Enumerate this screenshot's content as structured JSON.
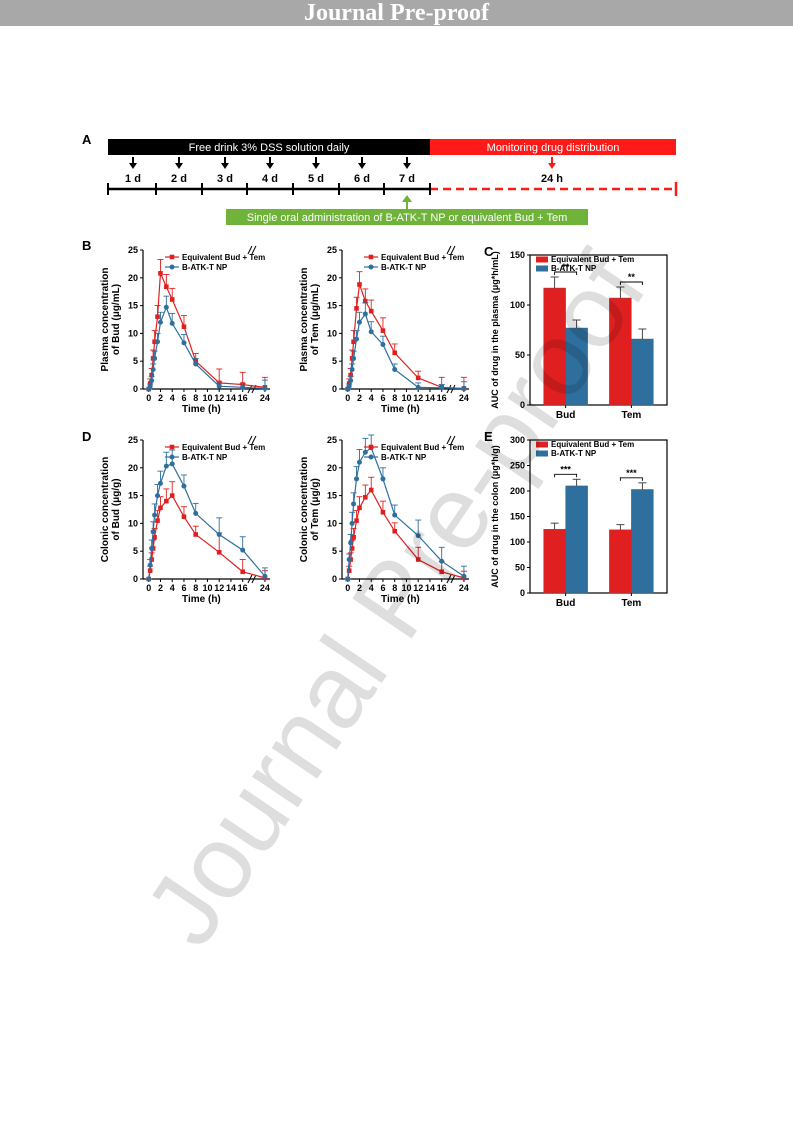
{
  "header": {
    "banner_text": "Journal Pre-proof"
  },
  "watermark": "Journal Pre-proof",
  "panel_labels": {
    "a": "A",
    "b": "B",
    "c": "C",
    "d": "D",
    "e": "E"
  },
  "timeline": {
    "black_bar_label": "Free drink 3% DSS solution daily",
    "red_bar_label": "Monitoring drug distribution",
    "days": [
      "1 d",
      "2 d",
      "3 d",
      "4 d",
      "5 d",
      "6 d",
      "7 d"
    ],
    "end_label": "24 h",
    "green_label": "Single oral administration of B-ATK-T NP or equivalent Bud + Tem"
  },
  "colors": {
    "red": "#e02020",
    "blue": "#2e6f9e",
    "black_bar": "#000000",
    "red_bar": "#ff1a1a",
    "green_bar": "#6fb33a"
  },
  "chart_data": [
    {
      "id": "B-left",
      "type": "line",
      "ylabel": "Plasma concentration of Bud (μg/mL)",
      "xlabel": "Time (h)",
      "ylim": [
        0,
        25
      ],
      "yticks": [
        0,
        5,
        10,
        15,
        20,
        25
      ],
      "xtick_labels": [
        "0",
        "2",
        "4",
        "6",
        "8",
        "10",
        "12",
        "14",
        "16",
        "24"
      ],
      "axis_break": true,
      "series": [
        {
          "name": "Equivalent Bud + Tem",
          "color": "#e02020",
          "marker": "square",
          "x": [
            0,
            0.25,
            0.5,
            0.75,
            1,
            1.5,
            2,
            3,
            4,
            6,
            8,
            12,
            16,
            24
          ],
          "y": [
            0,
            1.0,
            2.5,
            5.5,
            8.5,
            13,
            20.8,
            18.4,
            16.1,
            11.2,
            5,
            1.1,
            0.8,
            0.3
          ],
          "err": [
            0,
            0.8,
            1.2,
            1.5,
            2,
            2,
            2.5,
            2.2,
            2,
            2,
            1.4,
            2.5,
            2.2,
            1.8
          ]
        },
        {
          "name": "B-ATK-T NP",
          "color": "#2e6f9e",
          "marker": "circle",
          "x": [
            0,
            0.25,
            0.5,
            0.75,
            1,
            1.5,
            2,
            3,
            4,
            6,
            8,
            12,
            16,
            24
          ],
          "y": [
            0,
            0.5,
            1.5,
            3.5,
            5.5,
            8.5,
            12,
            14.7,
            11.8,
            8.3,
            4.5,
            0.5,
            0.3,
            0.1
          ],
          "err": [
            0,
            0.4,
            0.8,
            1,
            1.3,
            1.5,
            1.8,
            2,
            1.8,
            1.5,
            1,
            0.8,
            0.7,
            1.5
          ]
        }
      ]
    },
    {
      "id": "B-right",
      "type": "line",
      "ylabel": "Plasma concentration of Tem (μg/mL)",
      "xlabel": "Time (h)",
      "ylim": [
        0,
        25
      ],
      "yticks": [
        0,
        5,
        10,
        15,
        20,
        25
      ],
      "xtick_labels": [
        "0",
        "2",
        "4",
        "6",
        "8",
        "10",
        "12",
        "14",
        "16",
        "24"
      ],
      "axis_break": true,
      "series": [
        {
          "name": "Equivalent Bud + Tem",
          "color": "#e02020",
          "marker": "square",
          "x": [
            0,
            0.25,
            0.5,
            0.75,
            1,
            1.5,
            2,
            3,
            4,
            6,
            8,
            12,
            16,
            24
          ],
          "y": [
            0,
            1.0,
            2.5,
            5.5,
            8.5,
            14.5,
            18.8,
            15.8,
            14,
            10.5,
            6.5,
            2,
            0.3,
            0.1
          ],
          "err": [
            0,
            0.8,
            1.2,
            1.5,
            2,
            2,
            2.3,
            2.2,
            2,
            2.3,
            1.6,
            1.2,
            1.8,
            2
          ]
        },
        {
          "name": "B-ATK-T NP",
          "color": "#2e6f9e",
          "marker": "circle",
          "x": [
            0,
            0.25,
            0.5,
            0.75,
            1,
            1.5,
            2,
            3,
            4,
            6,
            8,
            12,
            16,
            24
          ],
          "y": [
            0,
            0.5,
            1.5,
            3.5,
            5.5,
            9,
            12,
            13.5,
            10.3,
            8,
            3.5,
            0.3,
            0.2,
            0.1
          ],
          "err": [
            0,
            0.4,
            0.8,
            1,
            1.3,
            1.5,
            1.8,
            2,
            1.8,
            1.5,
            1,
            0.8,
            0.6,
            1.2
          ]
        }
      ]
    },
    {
      "id": "C",
      "type": "bar",
      "ylabel": "AUC of drug in the plasma (μg*h/mL)",
      "categories": [
        "Bud",
        "Tem"
      ],
      "ylim": [
        0,
        150
      ],
      "yticks": [
        0,
        50,
        100,
        150
      ],
      "series": [
        {
          "name": "Equivalent Bud + Tem",
          "color": "#e02020",
          "values": [
            117,
            107
          ],
          "err": [
            11,
            11
          ]
        },
        {
          "name": "B-ATK-T NP",
          "color": "#2e6f9e",
          "values": [
            77,
            66
          ],
          "err": [
            8,
            10
          ]
        }
      ],
      "significance": [
        "**",
        "**"
      ]
    },
    {
      "id": "D-left",
      "type": "line",
      "ylabel": "Colonic concentration of Bud (μg/g)",
      "xlabel": "Time (h)",
      "ylim": [
        0,
        25
      ],
      "yticks": [
        0,
        5,
        10,
        15,
        20,
        25
      ],
      "xtick_labels": [
        "0",
        "2",
        "4",
        "6",
        "8",
        "10",
        "12",
        "14",
        "16",
        "24"
      ],
      "axis_break": true,
      "series": [
        {
          "name": "Equivalent Bud + Tem",
          "color": "#e02020",
          "marker": "square",
          "x": [
            0,
            0.25,
            0.5,
            0.75,
            1,
            1.5,
            2,
            3,
            4,
            6,
            8,
            12,
            16,
            24
          ],
          "y": [
            0,
            1.5,
            3.5,
            5.5,
            7.5,
            10.5,
            12.8,
            14,
            15,
            11.2,
            8,
            4.8,
            1.3,
            0.2
          ],
          "err": [
            0,
            0.8,
            1.2,
            1.5,
            1.6,
            1.8,
            2,
            2.2,
            2.5,
            1.8,
            1.5,
            3.5,
            2.2,
            1.3
          ]
        },
        {
          "name": "B-ATK-T NP",
          "color": "#2e6f9e",
          "marker": "circle",
          "x": [
            0,
            0.25,
            0.5,
            0.75,
            1,
            1.5,
            2,
            3,
            4,
            6,
            8,
            12,
            16,
            24
          ],
          "y": [
            0,
            2.5,
            5.5,
            8.5,
            11.5,
            15,
            17.2,
            20.3,
            20.7,
            16.7,
            11.8,
            8,
            5.2,
            0.5
          ],
          "err": [
            0,
            1,
            1.5,
            1.8,
            2,
            2,
            2.2,
            2.5,
            2.5,
            2,
            1.8,
            3,
            2.4,
            1.5
          ]
        }
      ]
    },
    {
      "id": "D-right",
      "type": "line",
      "ylabel": "Colonic concentration of Tem (μg/g)",
      "xlabel": "Time (h)",
      "ylim": [
        0,
        25
      ],
      "yticks": [
        0,
        5,
        10,
        15,
        20,
        25
      ],
      "xtick_labels": [
        "0",
        "2",
        "4",
        "6",
        "8",
        "10",
        "12",
        "14",
        "16",
        "24"
      ],
      "axis_break": true,
      "series": [
        {
          "name": "Equivalent Bud + Tem",
          "color": "#e02020",
          "marker": "square",
          "x": [
            0,
            0.25,
            0.5,
            0.75,
            1,
            1.5,
            2,
            3,
            4,
            6,
            8,
            12,
            16,
            24
          ],
          "y": [
            0,
            1.5,
            3.5,
            5.5,
            7.5,
            10.5,
            12.8,
            14.7,
            16,
            12,
            8.6,
            3.5,
            1.3,
            0.2
          ],
          "err": [
            0,
            0.8,
            1.2,
            1.5,
            1.6,
            1.8,
            2,
            2.2,
            2.3,
            2,
            1.5,
            2.2,
            1.8,
            1.2
          ]
        },
        {
          "name": "B-ATK-T NP",
          "color": "#2e6f9e",
          "marker": "circle",
          "x": [
            0,
            0.25,
            0.5,
            0.75,
            1,
            1.5,
            2,
            3,
            4,
            6,
            8,
            12,
            16,
            24
          ],
          "y": [
            0,
            3.5,
            6.5,
            10,
            13.5,
            18,
            21,
            22.8,
            23.6,
            18,
            11.5,
            7.8,
            3.2,
            0.5
          ],
          "err": [
            0,
            1,
            1.5,
            2,
            2,
            2.2,
            2.3,
            2.5,
            2.3,
            2,
            1.8,
            2.8,
            2.5,
            1.8
          ]
        }
      ]
    },
    {
      "id": "E",
      "type": "bar",
      "ylabel": "AUC of drug in the colon (μg*h/g)",
      "categories": [
        "Bud",
        "Tem"
      ],
      "ylim": [
        0,
        300
      ],
      "yticks": [
        0,
        50,
        100,
        150,
        200,
        250,
        300
      ],
      "series": [
        {
          "name": "Equivalent Bud + Tem",
          "color": "#e02020",
          "values": [
            125,
            124
          ],
          "err": [
            12,
            10
          ]
        },
        {
          "name": "B-ATK-T NP",
          "color": "#2e6f9e",
          "values": [
            210,
            203
          ],
          "err": [
            13,
            13
          ]
        }
      ],
      "significance": [
        "***",
        "***"
      ]
    }
  ]
}
